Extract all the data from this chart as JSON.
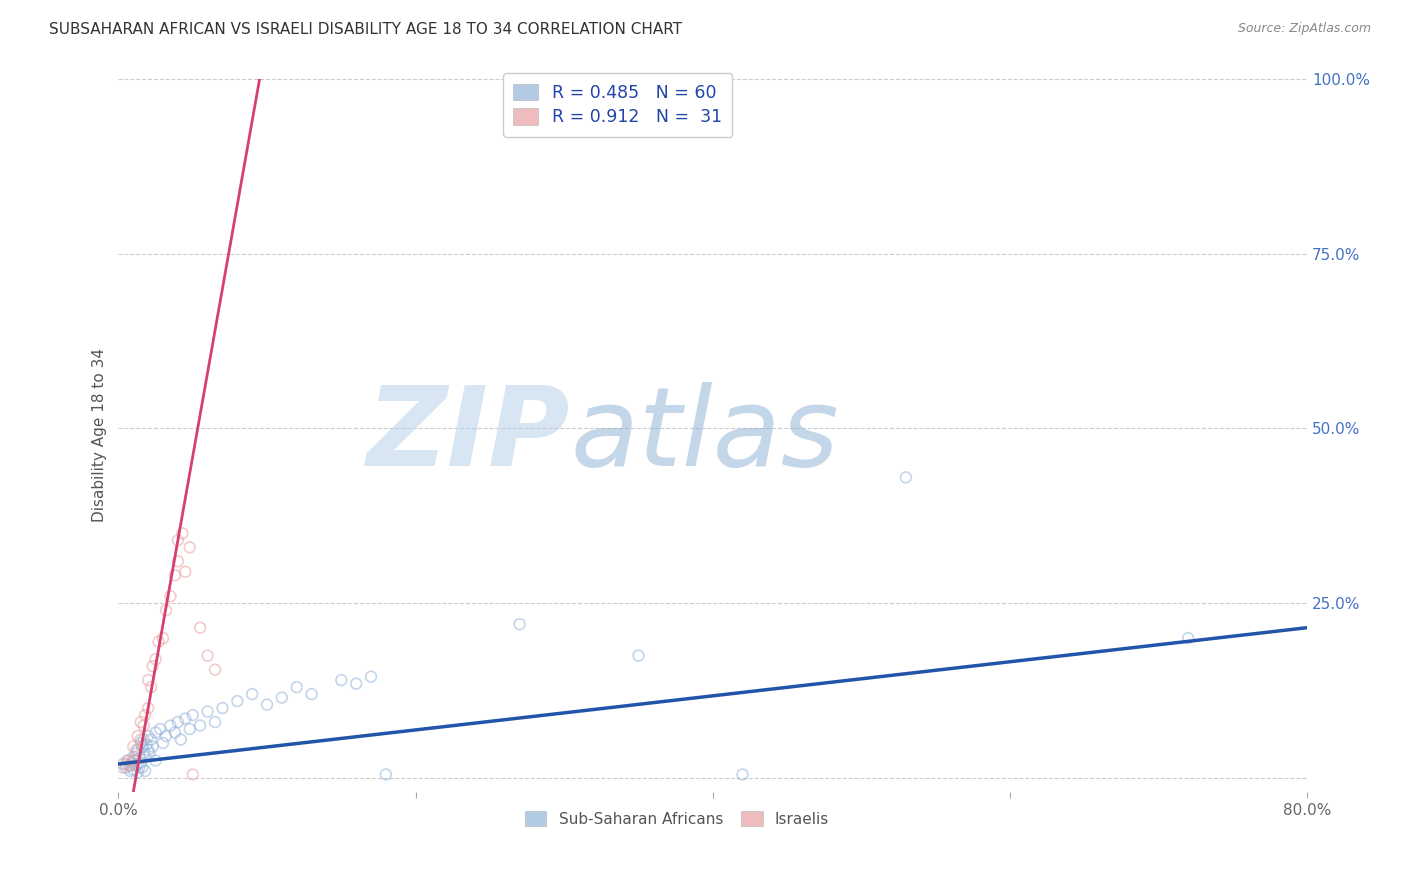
{
  "title": "SUBSAHARAN AFRICAN VS ISRAELI DISABILITY AGE 18 TO 34 CORRELATION CHART",
  "source": "Source: ZipAtlas.com",
  "ylabel": "Disability Age 18 to 34",
  "xlim": [
    0.0,
    0.8
  ],
  "ylim": [
    -0.02,
    1.0
  ],
  "xtick_positions": [
    0.0,
    0.2,
    0.4,
    0.6,
    0.8
  ],
  "xticklabels": [
    "0.0%",
    "",
    "",
    "",
    "80.0%"
  ],
  "ytick_positions": [
    0.0,
    0.25,
    0.5,
    0.75,
    1.0
  ],
  "yticklabels": [
    "",
    "25.0%",
    "50.0%",
    "75.0%",
    "100.0%"
  ],
  "blue_color": "#92b4d9",
  "pink_color": "#e8a0a0",
  "blue_line_color": "#2255aa",
  "pink_line_color": "#d44070",
  "legend_blue_R": "0.485",
  "legend_blue_N": "60",
  "legend_pink_R": "0.912",
  "legend_pink_N": "31",
  "legend_label_blue": "Sub-Saharan Africans",
  "legend_label_pink": "Israelis",
  "background_color": "#ffffff",
  "blue_scatter_x": [
    0.003,
    0.005,
    0.006,
    0.007,
    0.008,
    0.009,
    0.01,
    0.01,
    0.011,
    0.012,
    0.012,
    0.013,
    0.013,
    0.014,
    0.014,
    0.015,
    0.015,
    0.016,
    0.016,
    0.017,
    0.017,
    0.018,
    0.018,
    0.019,
    0.02,
    0.02,
    0.021,
    0.022,
    0.023,
    0.025,
    0.025,
    0.028,
    0.03,
    0.032,
    0.035,
    0.038,
    0.04,
    0.042,
    0.045,
    0.048,
    0.05,
    0.055,
    0.06,
    0.065,
    0.07,
    0.08,
    0.09,
    0.1,
    0.11,
    0.12,
    0.13,
    0.15,
    0.16,
    0.17,
    0.18,
    0.27,
    0.35,
    0.42,
    0.53,
    0.72
  ],
  "blue_scatter_y": [
    0.02,
    0.015,
    0.025,
    0.018,
    0.01,
    0.022,
    0.03,
    0.012,
    0.025,
    0.035,
    0.018,
    0.04,
    0.008,
    0.028,
    0.015,
    0.05,
    0.022,
    0.045,
    0.015,
    0.035,
    0.055,
    0.03,
    0.01,
    0.048,
    0.04,
    0.06,
    0.035,
    0.055,
    0.045,
    0.065,
    0.025,
    0.07,
    0.05,
    0.06,
    0.075,
    0.065,
    0.08,
    0.055,
    0.085,
    0.07,
    0.09,
    0.075,
    0.095,
    0.08,
    0.1,
    0.11,
    0.12,
    0.105,
    0.115,
    0.13,
    0.12,
    0.14,
    0.135,
    0.145,
    0.005,
    0.22,
    0.175,
    0.005,
    0.43,
    0.2
  ],
  "pink_scatter_x": [
    0.003,
    0.005,
    0.007,
    0.008,
    0.01,
    0.01,
    0.012,
    0.013,
    0.015,
    0.015,
    0.017,
    0.018,
    0.02,
    0.02,
    0.022,
    0.023,
    0.025,
    0.027,
    0.03,
    0.032,
    0.035,
    0.038,
    0.04,
    0.04,
    0.043,
    0.045,
    0.048,
    0.05,
    0.055,
    0.06,
    0.065
  ],
  "pink_scatter_y": [
    0.015,
    0.02,
    0.025,
    0.018,
    0.025,
    0.045,
    0.04,
    0.06,
    0.055,
    0.08,
    0.075,
    0.09,
    0.1,
    0.14,
    0.13,
    0.16,
    0.17,
    0.195,
    0.2,
    0.24,
    0.26,
    0.29,
    0.31,
    0.34,
    0.35,
    0.295,
    0.33,
    0.005,
    0.215,
    0.175,
    0.155
  ],
  "blue_line_x": [
    0.0,
    0.8
  ],
  "blue_line_y": [
    0.02,
    0.215
  ],
  "pink_line_x": [
    0.01,
    0.095
  ],
  "pink_line_y": [
    -0.02,
    1.0
  ],
  "grid_color": "#cccccc",
  "grid_linestyle": "--",
  "scatter_size": 60,
  "scatter_alpha": 0.55,
  "scatter_linewidth": 1.2
}
